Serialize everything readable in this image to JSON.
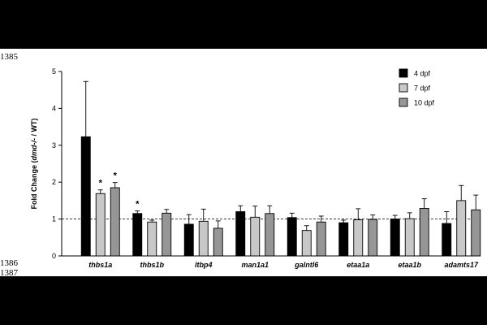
{
  "page": {
    "line_numbers": [
      "1385",
      "1386",
      "1387"
    ]
  },
  "chart_data": {
    "type": "bar",
    "ylabel_prefix": "Fold Change (",
    "ylabel_italic": "dmd-/-",
    "ylabel_suffix": " / WT)",
    "ylim": [
      0,
      5
    ],
    "yticks": [
      "0",
      "1",
      "2",
      "3",
      "4",
      "5"
    ],
    "reference_line": 1,
    "legend_position": "top-right",
    "categories": [
      "thbs1a",
      "thbs1b",
      "ltbp4",
      "man1a1",
      "galntl6",
      "etaa1a",
      "etaa1b",
      "adamts17"
    ],
    "series": [
      {
        "name": "4 dpf",
        "color": "#000000",
        "values": [
          3.23,
          1.15,
          0.86,
          1.2,
          1.04,
          0.9,
          1.0,
          0.88
        ],
        "errors": [
          1.5,
          0.07,
          0.26,
          0.16,
          0.12,
          0.07,
          0.1,
          0.32
        ]
      },
      {
        "name": "7 dpf",
        "color": "#c8c8c8",
        "values": [
          1.69,
          0.92,
          0.94,
          1.05,
          0.69,
          0.98,
          1.01,
          1.5
        ],
        "errors": [
          0.1,
          0.05,
          0.33,
          0.3,
          0.13,
          0.3,
          0.16,
          0.41
        ]
      },
      {
        "name": "10 dpf",
        "color": "#969696",
        "values": [
          1.85,
          1.16,
          0.75,
          1.15,
          0.92,
          0.99,
          1.29,
          1.25
        ],
        "errors": [
          0.14,
          0.1,
          0.2,
          0.21,
          0.16,
          0.12,
          0.26,
          0.4
        ]
      }
    ],
    "annotations": [
      {
        "category": "thbs1a",
        "series": "7 dpf",
        "text": "*"
      },
      {
        "category": "thbs1a",
        "series": "10 dpf",
        "text": "*"
      },
      {
        "category": "thbs1b",
        "series": "4 dpf",
        "text": "*"
      }
    ]
  }
}
